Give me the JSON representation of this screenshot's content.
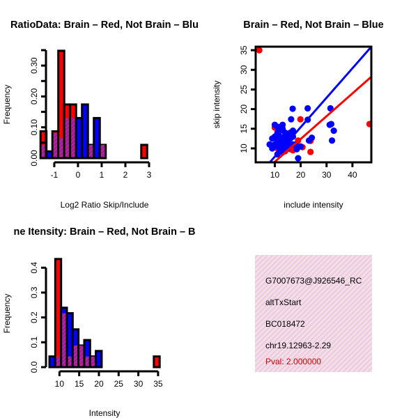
{
  "colors": {
    "red": "#ff0000",
    "blue": "#0000ff",
    "overlap": "#9a1aa0",
    "pval": "#cc0000",
    "info_bg": "#f9d8f2"
  },
  "chart_data": [
    {
      "type": "bar",
      "title": "RatioData: Brain – Red, Not Brain – Blu",
      "xlabel": "Log2 Ratio Skip/Include",
      "ylabel": "Frequency",
      "xlim": [
        -1.6,
        3.25
      ],
      "ylim": [
        0,
        0.35
      ],
      "xticks": [
        "-1",
        "0",
        "1",
        "2",
        "3"
      ],
      "yticks": [
        0,
        0.05,
        0.1,
        0.15,
        0.2,
        0.25,
        0.3,
        0.35
      ],
      "ytick_labels": [
        "0.00",
        "",
        "0.10",
        "",
        "0.20",
        "",
        "0.30",
        ""
      ],
      "bin_start": -1.58,
      "bin_width": 0.25,
      "series": [
        {
          "name": "Brain",
          "color": "red",
          "values": [
            0.087,
            0,
            0.087,
            0.348,
            0.174,
            0.174,
            0,
            0,
            0.043,
            0,
            0.043,
            0,
            0,
            0,
            0,
            0,
            0,
            0.043
          ]
        },
        {
          "name": "Not Brain",
          "color": "blue",
          "values": [
            0.043,
            0.022,
            0.08,
            0.065,
            0.13,
            0.13,
            0.13,
            0.174,
            0.043,
            0.13,
            0.043,
            0,
            0,
            0,
            0,
            0,
            0,
            0
          ]
        }
      ]
    },
    {
      "type": "scatter",
      "title": "Brain – Red, Not Brain – Blue",
      "xlabel": "include intensity",
      "ylabel": "skip intensity",
      "xlim": [
        2.6,
        47.3
      ],
      "ylim": [
        6.45,
        35.9
      ],
      "xticks": [
        "10",
        "20",
        "30",
        "40"
      ],
      "yticks": [
        "10",
        "15",
        "20",
        "25",
        "30",
        "35"
      ],
      "series": [
        {
          "name": "Brain",
          "color": "red",
          "points": [
            [
              4,
              35
            ],
            [
              19.9,
              17.4
            ],
            [
              46.6,
              16.2
            ],
            [
              20.7,
              10.3
            ],
            [
              23.8,
              9.1
            ],
            [
              23.8,
              11.9
            ],
            [
              10,
              15.3
            ],
            [
              11,
              10
            ],
            [
              14,
              9.3
            ],
            [
              16,
              9.8
            ],
            [
              17,
              9.5
            ],
            [
              18,
              11
            ],
            [
              13,
              10.8
            ],
            [
              19,
              12
            ]
          ],
          "fit": {
            "slope": 0.58,
            "intercept": 0.8
          }
        },
        {
          "name": "Not Brain",
          "color": "blue",
          "points": [
            [
              8,
              11
            ],
            [
              9,
              10
            ],
            [
              9,
              12.5
            ],
            [
              10,
              13
            ],
            [
              10,
              16
            ],
            [
              11,
              15.5
            ],
            [
              11,
              14
            ],
            [
              11,
              12
            ],
            [
              11,
              10.5
            ],
            [
              12,
              11
            ],
            [
              12,
              13
            ],
            [
              12,
              14.5
            ],
            [
              13,
              9
            ],
            [
              13,
              10
            ],
            [
              13,
              12
            ],
            [
              13,
              15
            ],
            [
              13,
              16
            ],
            [
              14,
              11
            ],
            [
              14,
              13
            ],
            [
              14,
              14
            ],
            [
              15,
              10
            ],
            [
              15,
              12
            ],
            [
              15,
              13.5
            ],
            [
              16,
              11
            ],
            [
              16,
              14
            ],
            [
              16,
              12.5
            ],
            [
              17,
              13
            ],
            [
              17,
              14.5
            ],
            [
              18,
              11
            ],
            [
              17,
              11
            ],
            [
              14,
              10.5
            ],
            [
              12,
              9.5
            ],
            [
              10,
              11
            ],
            [
              16.3,
              17.4
            ],
            [
              16.9,
              20.1
            ],
            [
              22.7,
              20.2
            ],
            [
              22.7,
              17.3
            ],
            [
              31.5,
              20.2
            ],
            [
              31.2,
              16
            ],
            [
              31.8,
              16.2
            ],
            [
              32.8,
              14.5
            ],
            [
              32.1,
              12
            ],
            [
              24.3,
              12.7
            ],
            [
              23.2,
              12
            ],
            [
              19,
              7.5
            ],
            [
              20,
              10.5
            ],
            [
              11,
              8.5
            ],
            [
              18.5,
              9.8
            ]
          ],
          "fit": {
            "slope": 0.75,
            "intercept": 0.4
          }
        }
      ]
    },
    {
      "type": "bar",
      "title": "ne Itensity: Brain – Red, Not Brain – B",
      "xlabel": "Intensity",
      "ylabel": "Frequency",
      "xlim": [
        7.5,
        36.5
      ],
      "ylim": [
        0,
        0.44
      ],
      "xticks": [
        "10",
        "15",
        "20",
        "25",
        "30",
        "35"
      ],
      "yticks": [
        0,
        0.1,
        0.2,
        0.3,
        0.4
      ],
      "ytick_labels": [
        "0.0",
        "0.1",
        "0.2",
        "0.3",
        "0.4"
      ],
      "bin_start": 7.47,
      "bin_width": 1.47,
      "series": [
        {
          "name": "Brain",
          "color": "red",
          "values": [
            0,
            0.435,
            0.217,
            0.043,
            0.087,
            0.087,
            0.043,
            0.043,
            0,
            0,
            0,
            0,
            0,
            0,
            0,
            0,
            0,
            0,
            0.043
          ]
        },
        {
          "name": "Not Brain",
          "color": "blue",
          "values": [
            0.043,
            0.043,
            0.239,
            0.217,
            0.152,
            0.087,
            0.109,
            0.043,
            0.065,
            0,
            0,
            0,
            0,
            0,
            0,
            0,
            0,
            0,
            0
          ]
        }
      ]
    }
  ],
  "info": {
    "id": "G7007673@J926546_RC",
    "event": "altTxStart",
    "accession": "BC018472",
    "location": "chr19.12963-2.29",
    "pval": "Pval: 2.000000"
  }
}
